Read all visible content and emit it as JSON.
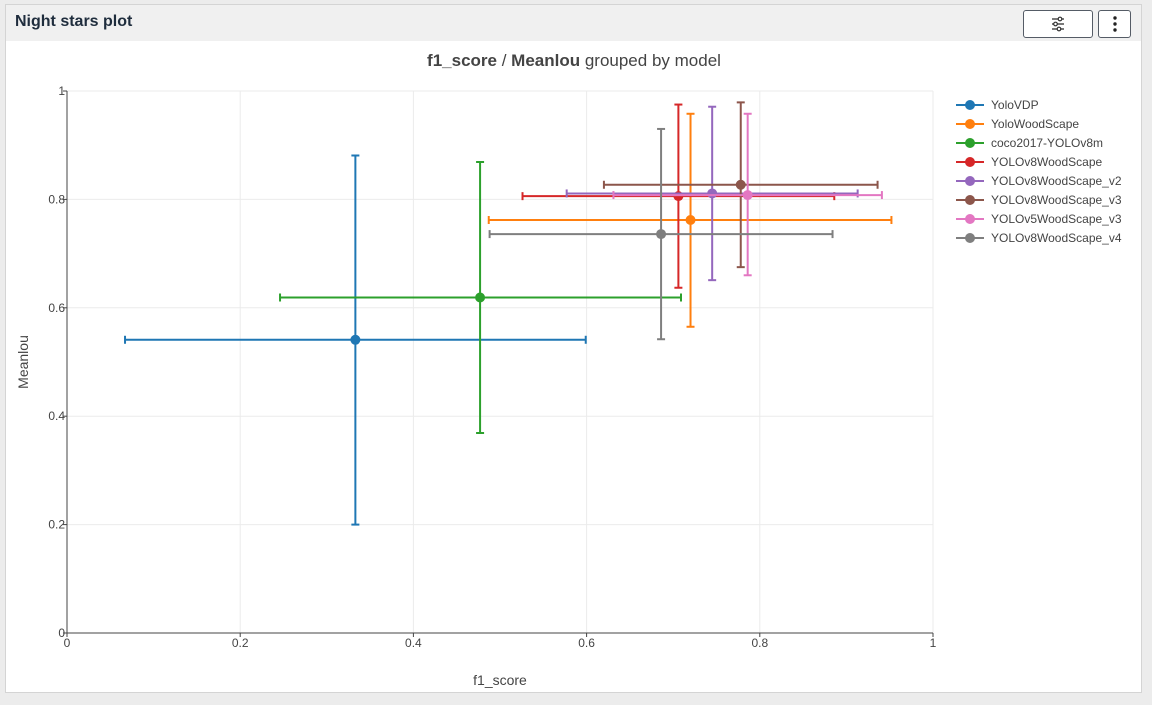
{
  "panel": {
    "title": "Night stars plot",
    "settings_icon": "sliders-icon",
    "more_icon": "vertical-ellipsis-icon"
  },
  "chart_data": {
    "type": "scatter",
    "title_parts": {
      "x_metric": "f1_score",
      "sep": " / ",
      "y_metric": "Meanlou",
      "suffix": " grouped by model"
    },
    "xlabel": "f1_score",
    "ylabel": "Meanlou",
    "xlim": [
      0,
      1
    ],
    "ylim": [
      0,
      1
    ],
    "xticks": [
      0,
      0.2,
      0.4,
      0.6,
      0.8,
      1
    ],
    "yticks": [
      0,
      0.2,
      0.4,
      0.6,
      0.8,
      1
    ],
    "xtick_labels": [
      "0",
      "0.2",
      "0.4",
      "0.6",
      "0.8",
      "1"
    ],
    "ytick_labels": [
      "0",
      "0.2",
      "0.4",
      "0.6",
      "0.8",
      "1"
    ],
    "grid": true,
    "legend_position": "right",
    "series": [
      {
        "name": "YoloVDP",
        "color": "#1f77b4",
        "x": 0.333,
        "y": 0.541,
        "x_err": [
          0.067,
          0.599
        ],
        "y_err": [
          0.2,
          0.881
        ]
      },
      {
        "name": "YoloWoodScape",
        "color": "#ff7f0e",
        "x": 0.72,
        "y": 0.762,
        "x_err": [
          0.487,
          0.952
        ],
        "y_err": [
          0.565,
          0.958
        ]
      },
      {
        "name": "coco2017-YOLOv8m",
        "color": "#2ca02c",
        "x": 0.477,
        "y": 0.619,
        "x_err": [
          0.246,
          0.709
        ],
        "y_err": [
          0.369,
          0.869
        ]
      },
      {
        "name": "YOLOv8WoodScape",
        "color": "#d62728",
        "x": 0.706,
        "y": 0.806,
        "x_err": [
          0.526,
          0.886
        ],
        "y_err": [
          0.637,
          0.975
        ]
      },
      {
        "name": "YOLOv8WoodScape_v2",
        "color": "#9467bd",
        "x": 0.745,
        "y": 0.811,
        "x_err": [
          0.577,
          0.913
        ],
        "y_err": [
          0.651,
          0.971
        ]
      },
      {
        "name": "YOLOv8WoodScape_v3",
        "color": "#8c564b",
        "x": 0.778,
        "y": 0.827,
        "x_err": [
          0.62,
          0.936
        ],
        "y_err": [
          0.675,
          0.979
        ]
      },
      {
        "name": "YOLOv5WoodScape_v3",
        "color": "#e377c2",
        "x": 0.786,
        "y": 0.808,
        "x_err": [
          0.631,
          0.941
        ],
        "y_err": [
          0.66,
          0.958
        ]
      },
      {
        "name": "YOLOv8WoodScape_v4",
        "color": "#7f7f7f",
        "x": 0.686,
        "y": 0.736,
        "x_err": [
          0.488,
          0.884
        ],
        "y_err": [
          0.542,
          0.93
        ]
      }
    ]
  }
}
